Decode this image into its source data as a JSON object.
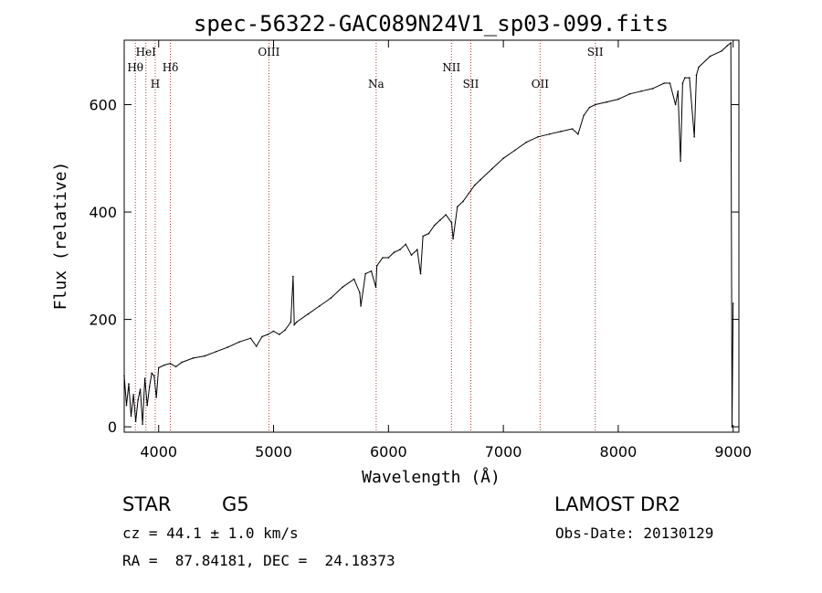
{
  "chart_data": {
    "type": "line",
    "title": "spec-56322-GAC089N24V1_sp03-099.fits",
    "xlabel": "Wavelength (Å)",
    "ylabel": "Flux (relative)",
    "xlim": [
      3700,
      9050
    ],
    "ylim": [
      -10,
      720
    ],
    "xticks": [
      4000,
      5000,
      6000,
      7000,
      8000,
      9000
    ],
    "yticks": [
      0,
      200,
      400,
      600
    ],
    "grid": false,
    "series": [
      {
        "color": "#000000",
        "x": [
          3700,
          3720,
          3740,
          3760,
          3780,
          3800,
          3820,
          3840,
          3860,
          3880,
          3900,
          3920,
          3940,
          3960,
          3980,
          4000,
          4050,
          4100,
          4150,
          4200,
          4300,
          4400,
          4500,
          4600,
          4700,
          4800,
          4850,
          4900,
          4950,
          5000,
          5050,
          5100,
          5150,
          5170,
          5180,
          5200,
          5300,
          5400,
          5500,
          5600,
          5700,
          5750,
          5760,
          5800,
          5850,
          5890,
          5900,
          5950,
          6000,
          6050,
          6100,
          6150,
          6200,
          6250,
          6280,
          6300,
          6350,
          6400,
          6450,
          6500,
          6550,
          6563,
          6600,
          6650,
          6700,
          6750,
          6800,
          6900,
          7000,
          7100,
          7200,
          7300,
          7400,
          7500,
          7600,
          7650,
          7700,
          7750,
          7800,
          7900,
          8000,
          8100,
          8200,
          8300,
          8400,
          8450,
          8498,
          8520,
          8542,
          8560,
          8580,
          8620,
          8662,
          8680,
          8700,
          8800,
          8900,
          8950,
          8980,
          8990,
          9000
        ],
        "y": [
          95,
          40,
          80,
          20,
          60,
          10,
          50,
          70,
          5,
          90,
          40,
          75,
          100,
          95,
          55,
          110,
          115,
          118,
          112,
          120,
          128,
          132,
          140,
          148,
          158,
          165,
          150,
          168,
          172,
          178,
          172,
          180,
          195,
          280,
          190,
          195,
          210,
          225,
          240,
          260,
          275,
          250,
          225,
          285,
          290,
          260,
          300,
          315,
          315,
          325,
          330,
          340,
          320,
          330,
          285,
          355,
          360,
          375,
          385,
          395,
          380,
          350,
          410,
          420,
          435,
          450,
          460,
          480,
          500,
          515,
          530,
          540,
          545,
          550,
          555,
          545,
          580,
          595,
          600,
          605,
          610,
          620,
          625,
          630,
          640,
          640,
          600,
          625,
          495,
          640,
          650,
          650,
          540,
          655,
          670,
          690,
          700,
          710,
          715,
          0,
          230
        ]
      }
    ],
    "annotations": [
      {
        "label": "Hθ",
        "x": 3797,
        "row": 2
      },
      {
        "label": "HeI",
        "x": 3889,
        "row": 1
      },
      {
        "label": "H",
        "x": 3970,
        "row": 3
      },
      {
        "label": "Hδ",
        "x": 4102,
        "row": 2
      },
      {
        "label": "OIII",
        "x": 4959,
        "row": 1
      },
      {
        "label": "Na",
        "x": 5893,
        "row": 3
      },
      {
        "label": "NII",
        "x": 6548,
        "row": 2
      },
      {
        "label": "SII",
        "x": 6717,
        "row": 3
      },
      {
        "label": "OII",
        "x": 7320,
        "row": 3
      },
      {
        "label": "SII",
        "x": 7800,
        "row": 1
      }
    ]
  },
  "info": {
    "object_type": "STAR",
    "subclass": "G5",
    "survey": "LAMOST DR2",
    "redshift": "cz = 44.1 ± 1.0 km/s",
    "obs_date": "Obs-Date: 20130129",
    "coords": "RA =  87.84181, DEC =  24.18373"
  },
  "colors": {
    "line_marker": "#b03030",
    "spectrum": "#000000",
    "axes": "#000000"
  }
}
